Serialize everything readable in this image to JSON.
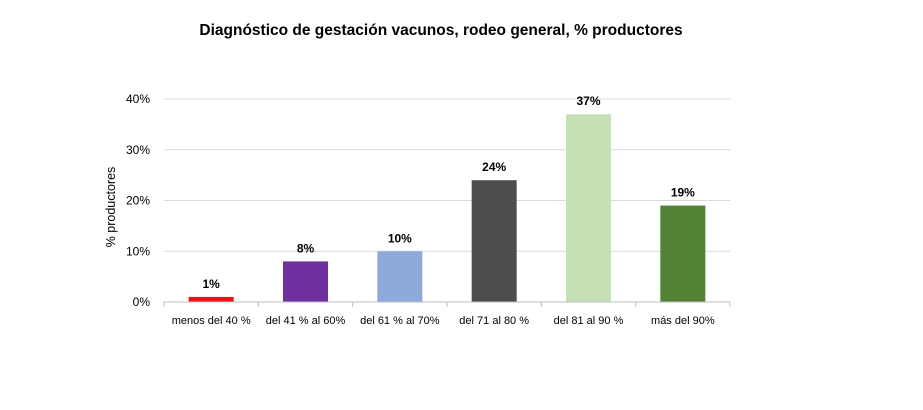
{
  "chart_data": {
    "type": "bar",
    "title": "Diagnóstico de gestación vacunos, rodeo general, % productores",
    "xlabel": "",
    "ylabel": "% productores",
    "ylim": [
      0,
      40
    ],
    "yticks": [
      "0%",
      "10%",
      "20%",
      "30%",
      "40%"
    ],
    "grid": true,
    "legend": "none",
    "categories": [
      "menos del 40 %",
      "del 41 % al 60%",
      "del 61 % al 70%",
      "del 71 al 80 %",
      "del 81 al 90 %",
      "más del 90%"
    ],
    "values": [
      1,
      8,
      10,
      24,
      37,
      19
    ],
    "data_labels": [
      "1%",
      "8%",
      "10%",
      "24%",
      "37%",
      "19%"
    ],
    "colors": [
      "#e8141b",
      "#7030a0",
      "#8eaadc",
      "#4d4d4d",
      "#c5e0b4",
      "#548235"
    ]
  }
}
